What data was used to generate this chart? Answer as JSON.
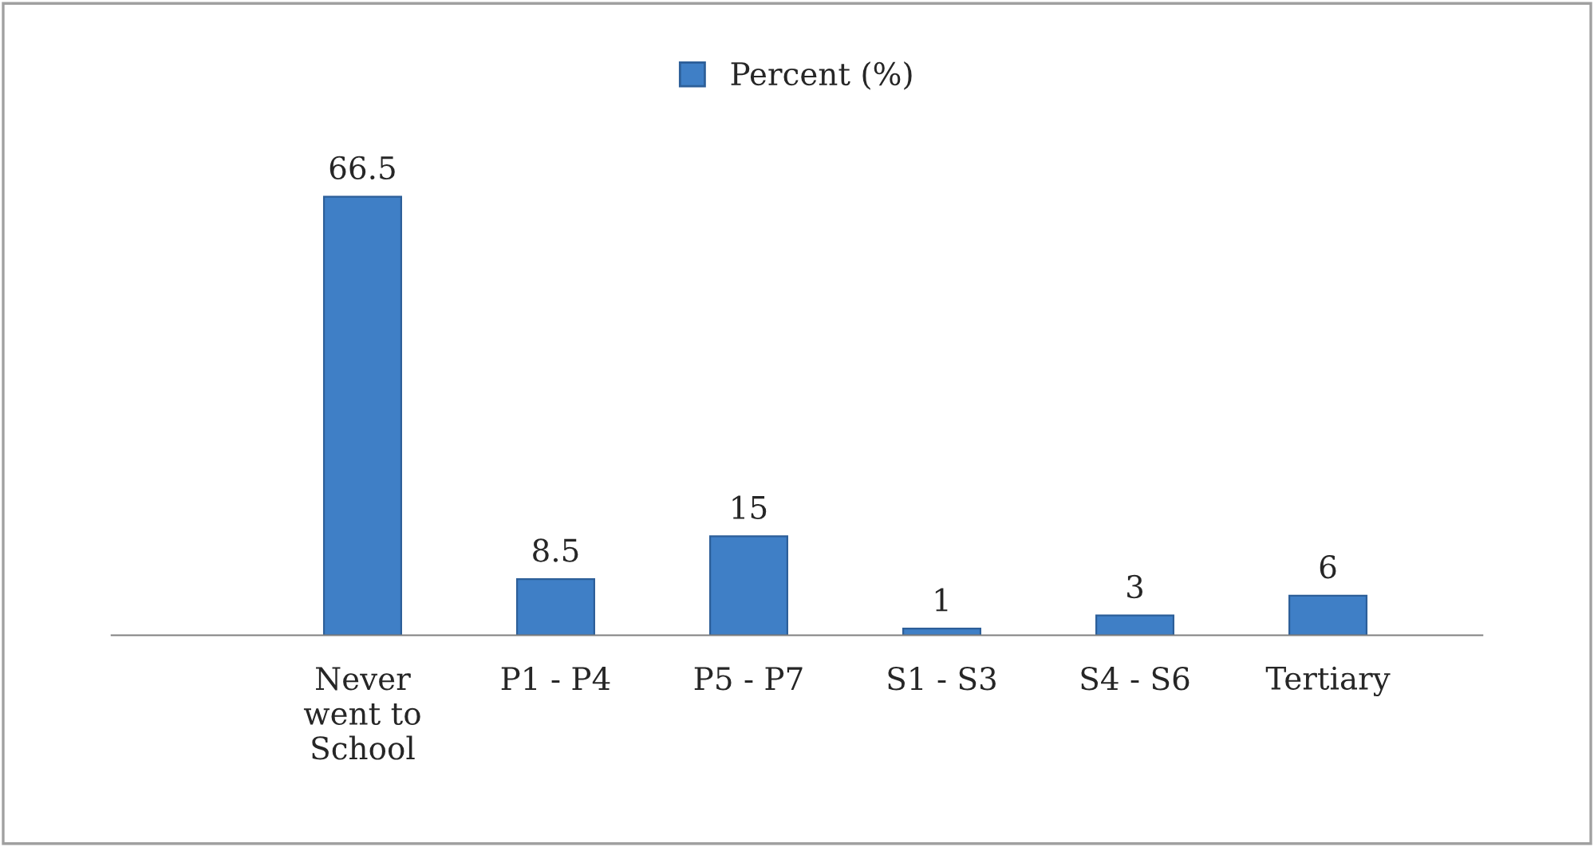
{
  "chart_data": {
    "type": "bar",
    "categories": [
      "Never\nwent to\nSchool",
      "P1 - P4",
      "P5 - P7",
      "S1 - S3",
      "S4 - S6",
      "Tertiary"
    ],
    "series": [
      {
        "name": "Percent (%)",
        "color": "#3f7fc6",
        "values": [
          66.5,
          8.5,
          15,
          1,
          3,
          6
        ]
      }
    ],
    "data_labels": true,
    "legend": "top",
    "grid": false,
    "tick_labels": "x"
  }
}
